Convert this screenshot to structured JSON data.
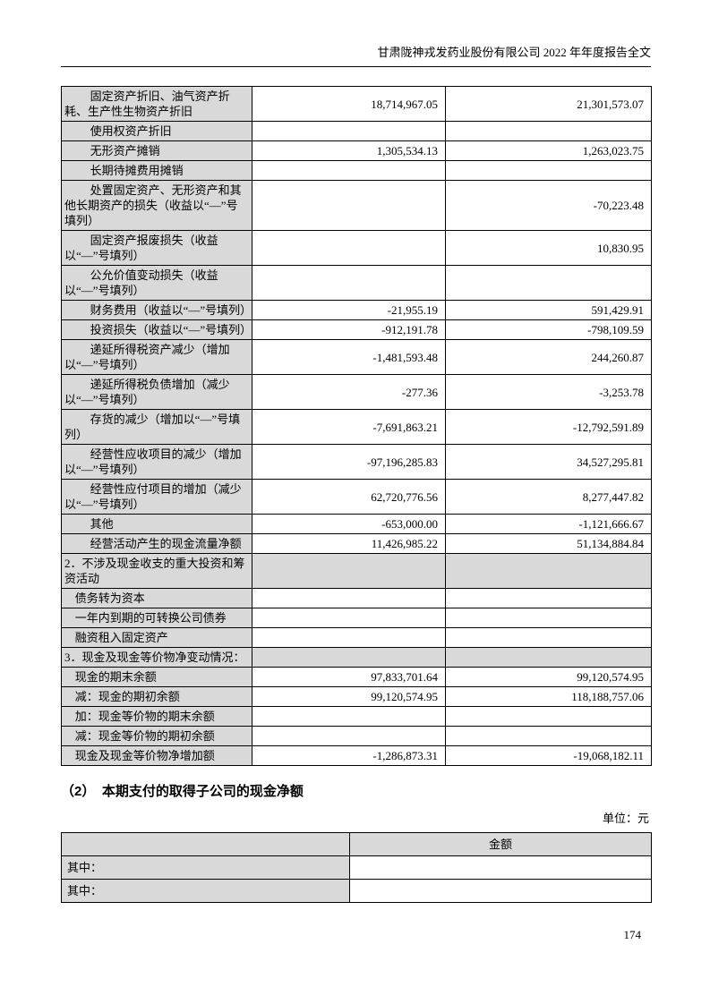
{
  "page": {
    "header_title": "甘肃陇神戎发药业股份有限公司 2022 年年度报告全文",
    "page_number": "174"
  },
  "colors": {
    "cell_shade": "#d9d9d9",
    "border": "#000000"
  },
  "table1": {
    "rows": [
      {
        "label": "固定资产折旧、油气资产折耗、生产性生物资产折旧",
        "v1": "18,714,967.05",
        "v2": "21,301,573.07",
        "level": 2,
        "section": false
      },
      {
        "label": "使用权资产折旧",
        "v1": "",
        "v2": "",
        "level": 2,
        "section": false
      },
      {
        "label": "无形资产摊销",
        "v1": "1,305,534.13",
        "v2": "1,263,023.75",
        "level": 2,
        "section": false
      },
      {
        "label": "长期待摊费用摊销",
        "v1": "",
        "v2": "",
        "level": 2,
        "section": false
      },
      {
        "label": "处置固定资产、无形资产和其他长期资产的损失（收益以“—”号填列）",
        "v1": "",
        "v2": "-70,223.48",
        "level": 2,
        "section": false
      },
      {
        "label": "固定资产报废损失（收益以“—”号填列）",
        "v1": "",
        "v2": "10,830.95",
        "level": 2,
        "section": false
      },
      {
        "label": "公允价值变动损失（收益以“—”号填列）",
        "v1": "",
        "v2": "",
        "level": 2,
        "section": false
      },
      {
        "label": "财务费用（收益以“—”号填列）",
        "v1": "-21,955.19",
        "v2": "591,429.91",
        "level": 2,
        "section": false
      },
      {
        "label": "投资损失（收益以“—”号填列）",
        "v1": "-912,191.78",
        "v2": "-798,109.59",
        "level": 2,
        "section": false
      },
      {
        "label": "递延所得税资产减少（增加以“—”号填列）",
        "v1": "-1,481,593.48",
        "v2": "244,260.87",
        "level": 2,
        "section": false
      },
      {
        "label": "递延所得税负债增加（减少以“—”号填列）",
        "v1": "-277.36",
        "v2": "-3,253.78",
        "level": 2,
        "section": false
      },
      {
        "label": "存货的减少（增加以“—”号填列）",
        "v1": "-7,691,863.21",
        "v2": "-12,792,591.89",
        "level": 2,
        "section": false
      },
      {
        "label": "经营性应收项目的减少（增加以“—”号填列）",
        "v1": "-97,196,285.83",
        "v2": "34,527,295.81",
        "level": 2,
        "section": false
      },
      {
        "label": "经营性应付项目的增加（减少以“—”号填列）",
        "v1": "62,720,776.56",
        "v2": "8,277,447.82",
        "level": 2,
        "section": false
      },
      {
        "label": "其他",
        "v1": "-653,000.00",
        "v2": "-1,121,666.67",
        "level": 2,
        "section": false
      },
      {
        "label": "经营活动产生的现金流量净额",
        "v1": "11,426,985.22",
        "v2": "51,134,884.84",
        "level": 2,
        "section": false
      },
      {
        "label": "2．不涉及现金收支的重大投资和筹资活动",
        "v1": "",
        "v2": "",
        "level": 0,
        "section": true
      },
      {
        "label": "债务转为资本",
        "v1": "",
        "v2": "",
        "level": 1,
        "section": false
      },
      {
        "label": "一年内到期的可转换公司债券",
        "v1": "",
        "v2": "",
        "level": 1,
        "section": false
      },
      {
        "label": "融资租入固定资产",
        "v1": "",
        "v2": "",
        "level": 1,
        "section": false
      },
      {
        "label": "3．现金及现金等价物净变动情况：",
        "v1": "",
        "v2": "",
        "level": 0,
        "section": true
      },
      {
        "label": "现金的期末余额",
        "v1": "97,833,701.64",
        "v2": "99,120,574.95",
        "level": 1,
        "section": false
      },
      {
        "label": "减：现金的期初余额",
        "v1": "99,120,574.95",
        "v2": "118,188,757.06",
        "level": 1,
        "section": false
      },
      {
        "label": "加：现金等价物的期末余额",
        "v1": "",
        "v2": "",
        "level": 1,
        "section": false
      },
      {
        "label": "减：现金等价物的期初余额",
        "v1": "",
        "v2": "",
        "level": 1,
        "section": false
      },
      {
        "label": "现金及现金等价物净增加额",
        "v1": "-1,286,873.31",
        "v2": "-19,068,182.11",
        "level": 1,
        "section": false
      }
    ]
  },
  "section2": {
    "heading": "（2）　本期支付的取得子公司的现金净额",
    "unit_label": "单位：元",
    "table": {
      "col2_header": "金额",
      "rows": [
        {
          "label": "其中：",
          "value": ""
        },
        {
          "label": "其中：",
          "value": ""
        }
      ]
    }
  }
}
